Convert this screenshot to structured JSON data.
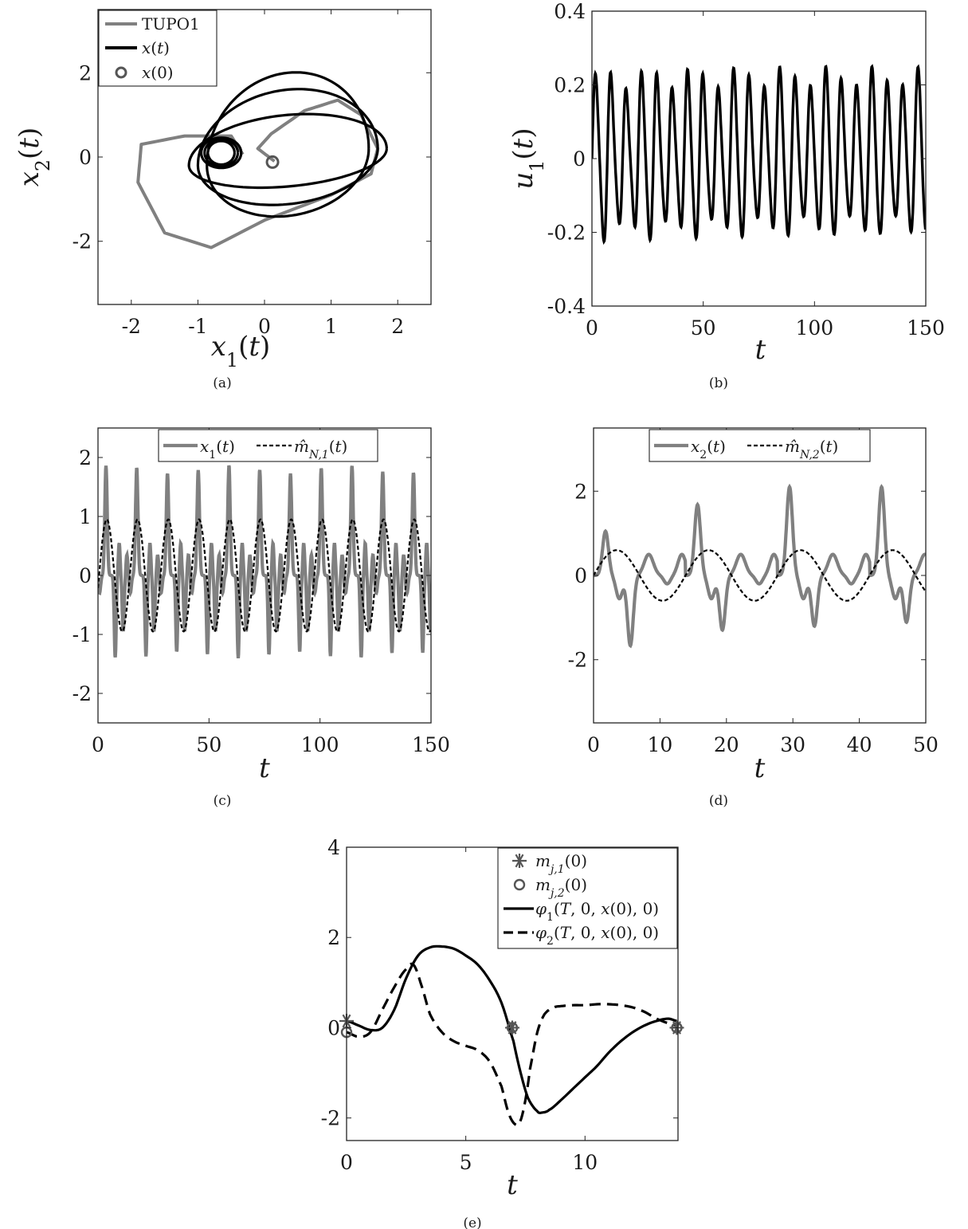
{
  "chart_data": [
    {
      "id": "a",
      "type": "line",
      "caption": "(a)",
      "xlabel": "x1(t)",
      "ylabel": "x2(t)",
      "xlim": [
        -2.5,
        2.5
      ],
      "ylim": [
        -3.5,
        3.5
      ],
      "xticks": [
        -2,
        -1,
        0,
        1,
        2
      ],
      "xtick_labels": [
        "-2",
        "-1",
        "0",
        "1",
        "2"
      ],
      "yticks": [
        -2,
        0,
        2
      ],
      "ytick_labels": [
        "-2",
        "0",
        "2"
      ],
      "legend_position": "top-left",
      "series": [
        {
          "name": "TUPO1",
          "color": "#808080",
          "style": "solid",
          "kind": "phase-orbit"
        },
        {
          "name": "x(t)",
          "color": "#000000",
          "style": "solid",
          "kind": "phase-trajectory"
        },
        {
          "name": "x(0)",
          "color": "#555555",
          "style": "marker-circle",
          "x": [
            0.12
          ],
          "y": [
            -0.12
          ]
        }
      ]
    },
    {
      "id": "b",
      "type": "line",
      "caption": "(b)",
      "xlabel": "t",
      "ylabel": "u1(t)",
      "xlim": [
        0,
        150
      ],
      "ylim": [
        -0.4,
        0.4
      ],
      "xticks": [
        0,
        50,
        100,
        150
      ],
      "xtick_labels": [
        "0",
        "50",
        "100",
        "150"
      ],
      "yticks": [
        -0.4,
        -0.2,
        0,
        0.2,
        0.4
      ],
      "ytick_labels": [
        "-0.4",
        "-0.2",
        "0",
        "0.2",
        "0.4"
      ],
      "series": [
        {
          "color": "#000000",
          "style": "solid",
          "period": 6.9,
          "amplitude_range": [
            -0.25,
            0.27
          ]
        }
      ]
    },
    {
      "id": "c",
      "type": "line",
      "caption": "(c)",
      "xlabel": "t",
      "ylabel": "",
      "xlim": [
        0,
        150
      ],
      "ylim": [
        -2.5,
        2.5
      ],
      "xticks": [
        0,
        50,
        100,
        150
      ],
      "xtick_labels": [
        "0",
        "50",
        "100",
        "150"
      ],
      "yticks": [
        -2,
        -1,
        0,
        1,
        2
      ],
      "ytick_labels": [
        "-2",
        "-1",
        "0",
        "1",
        "2"
      ],
      "legend_position": "top",
      "series": [
        {
          "name": "x1(t)",
          "color": "#808080",
          "style": "solid",
          "period": 13.85,
          "peak": 1.8,
          "trough": -1.4
        },
        {
          "name": "m̂N,1(t)",
          "color": "#000000",
          "style": "dashed",
          "period": 13.85,
          "amplitude": 0.95
        }
      ]
    },
    {
      "id": "d",
      "type": "line",
      "caption": "(d)",
      "xlabel": "t",
      "ylabel": "",
      "xlim": [
        0,
        50
      ],
      "ylim": [
        -3.5,
        3.5
      ],
      "xticks": [
        0,
        10,
        20,
        30,
        40,
        50
      ],
      "xtick_labels": [
        "0",
        "10",
        "20",
        "30",
        "40",
        "50"
      ],
      "yticks": [
        -2,
        0,
        2
      ],
      "ytick_labels": [
        "-2",
        "0",
        "2"
      ],
      "legend_position": "top",
      "series": [
        {
          "name": "x2(t)",
          "color": "#808080",
          "style": "solid",
          "period": 13.85,
          "peak": 2.1,
          "trough": -1.85
        },
        {
          "name": "m̂N,2(t)",
          "color": "#000000",
          "style": "dashed",
          "period": 13.85,
          "amplitude": 0.6
        }
      ]
    },
    {
      "id": "e",
      "type": "line",
      "caption": "(e)",
      "xlabel": "t",
      "ylabel": "",
      "xlim": [
        0,
        13.9
      ],
      "ylim": [
        -2.5,
        4
      ],
      "xticks": [
        0,
        5,
        10
      ],
      "xtick_labels": [
        "0",
        "5",
        "10"
      ],
      "yticks": [
        -2,
        0,
        2,
        4
      ],
      "ytick_labels": [
        "-2",
        "0",
        "2",
        "4"
      ],
      "legend_position": "top-right",
      "series": [
        {
          "name": "mj,1(0)",
          "color": "#555555",
          "style": "marker-star",
          "x": [
            0,
            6.95,
            13.85
          ],
          "y": [
            0.15,
            0.0,
            0.0
          ]
        },
        {
          "name": "mj,2(0)",
          "color": "#555555",
          "style": "marker-circle",
          "x": [
            0,
            6.95,
            13.85
          ],
          "y": [
            -0.1,
            0.0,
            0.0
          ]
        },
        {
          "name": "φ1(T,0,x(0),0)",
          "color": "#000000",
          "style": "solid",
          "x": [
            0,
            0.5,
            1.0,
            1.5,
            2.0,
            2.5,
            3.0,
            3.5,
            4.0,
            4.5,
            5.0,
            5.5,
            6.0,
            6.5,
            7.0,
            7.3,
            7.6,
            8.0,
            8.2,
            8.5,
            9.0,
            9.5,
            10.0,
            10.5,
            11.0,
            11.5,
            12.0,
            12.5,
            13.0,
            13.5,
            13.85
          ],
          "y": [
            0.15,
            0.05,
            -0.05,
            0.0,
            0.4,
            1.1,
            1.6,
            1.78,
            1.8,
            1.75,
            1.6,
            1.4,
            1.05,
            0.55,
            -0.3,
            -1.0,
            -1.55,
            -1.85,
            -1.88,
            -1.82,
            -1.6,
            -1.35,
            -1.1,
            -0.85,
            -0.55,
            -0.3,
            -0.1,
            0.05,
            0.15,
            0.2,
            0.15
          ]
        },
        {
          "name": "φ2(T,0,x(0),0)",
          "color": "#000000",
          "style": "dashed",
          "x": [
            0,
            0.5,
            1.0,
            1.5,
            2.0,
            2.5,
            2.8,
            3.1,
            3.5,
            4.0,
            4.5,
            5.0,
            5.5,
            6.0,
            6.5,
            6.8,
            7.1,
            7.3,
            7.5,
            7.7,
            8.0,
            8.3,
            8.7,
            9.0,
            9.5,
            10.0,
            10.5,
            11.0,
            11.5,
            12.0,
            12.5,
            13.0,
            13.5,
            13.85
          ],
          "y": [
            -0.1,
            -0.2,
            -0.1,
            0.4,
            0.9,
            1.3,
            1.4,
            1.0,
            0.3,
            -0.1,
            -0.3,
            -0.4,
            -0.5,
            -0.75,
            -1.3,
            -1.9,
            -2.15,
            -2.05,
            -1.6,
            -0.9,
            -0.1,
            0.3,
            0.45,
            0.48,
            0.5,
            0.5,
            0.52,
            0.52,
            0.5,
            0.45,
            0.35,
            0.2,
            0.1,
            0.05
          ]
        }
      ]
    }
  ]
}
